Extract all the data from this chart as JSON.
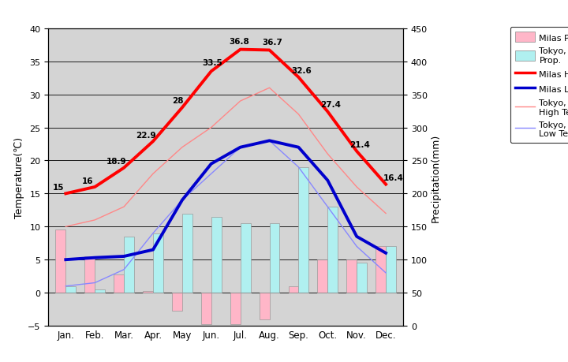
{
  "months": [
    "Jan.",
    "Feb.",
    "Mar.",
    "Apr.",
    "May",
    "Jun.",
    "Jul.",
    "Aug.",
    "Sep.",
    "Oct.",
    "Nov.",
    "Dec."
  ],
  "milas_high_temp": [
    15,
    16,
    18.9,
    22.9,
    28,
    33.5,
    36.8,
    36.7,
    32.6,
    27.4,
    21.4,
    16.4
  ],
  "milas_low_temp": [
    5,
    5.3,
    5.5,
    6.5,
    14,
    19.5,
    22,
    23,
    22,
    17,
    8.5,
    6
  ],
  "tokyo_high_temp": [
    10,
    11,
    13,
    18,
    22,
    25,
    29,
    31,
    27,
    21,
    16,
    12
  ],
  "tokyo_low_temp": [
    1,
    1.5,
    3.5,
    9,
    14,
    18,
    22,
    23,
    19,
    13,
    7,
    3
  ],
  "milas_precip_left": [
    9.5,
    5.5,
    2.7,
    0.2,
    -2.7,
    -4.8,
    -4.8,
    -4.0,
    1.0,
    5.0,
    5.0,
    7.0
  ],
  "tokyo_precip_left": [
    1.0,
    0.5,
    8.5,
    9.0,
    12.0,
    11.5,
    10.5,
    10.5,
    19.0,
    13.0,
    4.5,
    7.0
  ],
  "bg_color": "#d4d4d4",
  "title_left": "Temperature(℃)",
  "title_right": "Precipitation(mm)",
  "milas_high_color": "#ff0000",
  "milas_low_color": "#0000cc",
  "tokyo_high_color": "#ff8888",
  "tokyo_low_color": "#8888ff",
  "milas_precip_color": "#ffb6c8",
  "tokyo_precip_color": "#b0f0f0",
  "ylim_left": [
    -5,
    40
  ],
  "ylim_right": [
    0,
    450
  ],
  "yticks_left": [
    -5,
    0,
    5,
    10,
    15,
    20,
    25,
    30,
    35,
    40
  ],
  "yticks_right": [
    0,
    50,
    100,
    150,
    200,
    250,
    300,
    350,
    400,
    450
  ]
}
